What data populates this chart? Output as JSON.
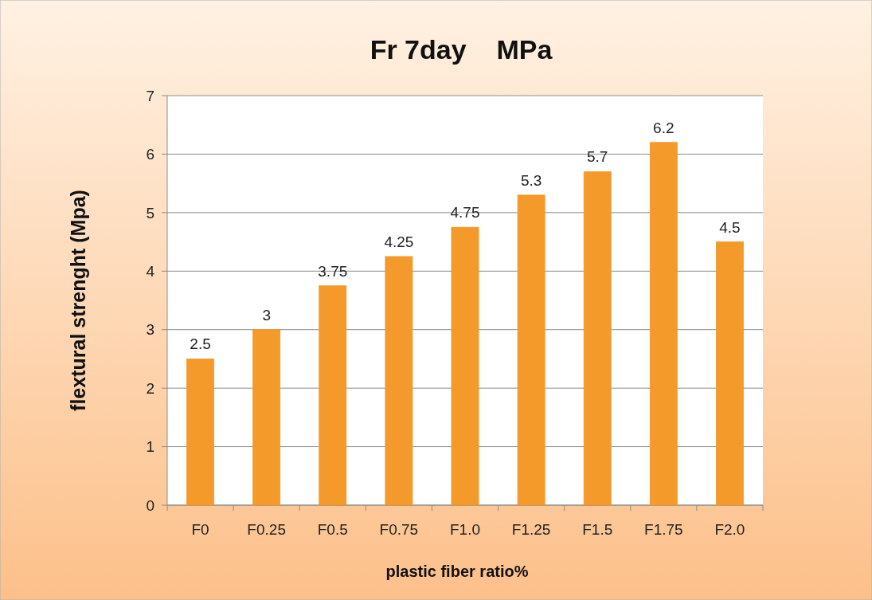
{
  "chart_data": {
    "type": "bar",
    "title": "Fr 7day    MPa",
    "xlabel": "plastic fiber ratio%",
    "ylabel": "flextural strenght (Mpa)",
    "categories": [
      "F0",
      "F0.25",
      "F0.5",
      "F0.75",
      "F1.0",
      "F1.25",
      "F1.5",
      "F1.75",
      "F2.0"
    ],
    "values": [
      2.5,
      3,
      3.75,
      4.25,
      4.75,
      5.3,
      5.7,
      6.2,
      4.5
    ],
    "color": "#f39a2a",
    "ylim": [
      0,
      7
    ],
    "yticks": [
      0,
      1,
      2,
      3,
      4,
      5,
      6,
      7
    ],
    "grid": "y",
    "data_labels": true
  }
}
